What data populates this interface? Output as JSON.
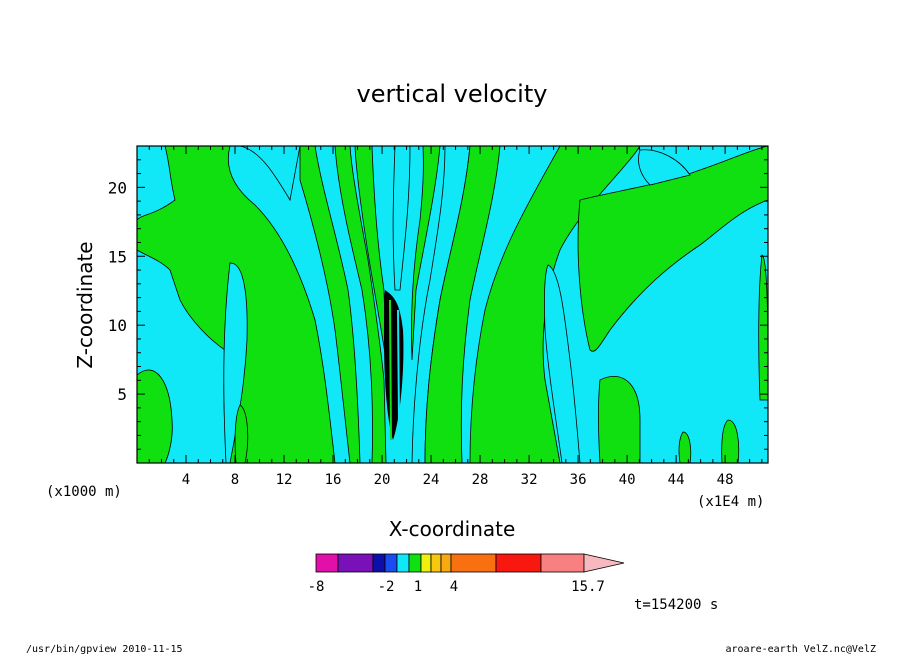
{
  "chart_data": {
    "type": "heatmap",
    "title": "vertical velocity",
    "xlabel": "X-coordinate",
    "ylabel": "Z-coordinate",
    "x_unit_label": "(x1000 m)",
    "x_extra_label": "(x1E4 m)",
    "xlim": [
      0,
      51.5
    ],
    "ylim": [
      0,
      23
    ],
    "x_ticks": [
      "4",
      "8",
      "12",
      "16",
      "20",
      "24",
      "28",
      "32",
      "36",
      "40",
      "44",
      "48"
    ],
    "y_ticks": [
      "5",
      "10",
      "15",
      "20"
    ],
    "colorbar": {
      "levels": [
        {
          "color": "#e010a8"
        },
        {
          "color": "#7a10b8"
        },
        {
          "color": "#0d10a8"
        },
        {
          "color": "#1a4cf0"
        },
        {
          "color": "#10e8f8"
        },
        {
          "color": "#10e010"
        },
        {
          "color": "#f0f010"
        },
        {
          "color": "#f8c810"
        },
        {
          "color": "#f8a810"
        },
        {
          "color": "#f87010"
        },
        {
          "color": "#f81810"
        },
        {
          "color": "#f88080"
        },
        {
          "color": "#f8b8c0"
        }
      ],
      "labels": [
        "-8",
        "-2",
        "1",
        "4",
        "15.7"
      ]
    },
    "time_label": "t=154200 s",
    "colors": {
      "cyan": "#10e8f8",
      "green": "#10e010",
      "black": "#000000"
    }
  },
  "footer": {
    "left": "/usr/bin/gpview  2010-11-15",
    "right": "aroare-earth_VelZ.nc@VelZ"
  }
}
